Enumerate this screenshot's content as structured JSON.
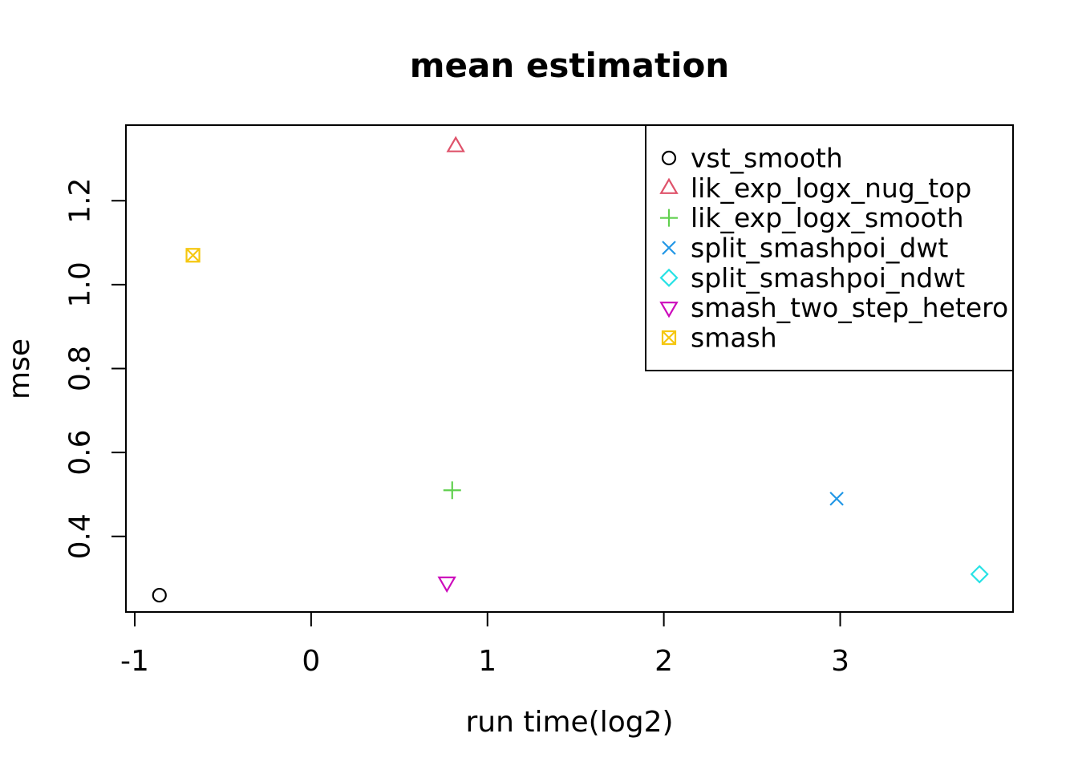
{
  "chart_data": {
    "type": "scatter",
    "title": "mean estimation",
    "xlabel": "run time(log2)",
    "ylabel": "mse",
    "xlim": [
      -1.05,
      3.98
    ],
    "ylim": [
      0.22,
      1.38
    ],
    "xticks": [
      {
        "value": -1,
        "label": "-1"
      },
      {
        "value": 0,
        "label": "0"
      },
      {
        "value": 1,
        "label": "1"
      },
      {
        "value": 2,
        "label": "2"
      },
      {
        "value": 3,
        "label": "3"
      }
    ],
    "yticks": [
      {
        "value": 0.4,
        "label": "0.4"
      },
      {
        "value": 0.6,
        "label": "0.6"
      },
      {
        "value": 0.8,
        "label": "0.8"
      },
      {
        "value": 1.0,
        "label": "1.0"
      },
      {
        "value": 1.2,
        "label": "1.2"
      }
    ],
    "grid": false,
    "legend": {
      "position": "topright",
      "border": true
    },
    "axis_color": "#000000",
    "background": "#FFFFFF",
    "series": [
      {
        "name": "vst_smooth",
        "marker": "circle",
        "color": "#000000",
        "points": [
          {
            "x": -0.86,
            "y": 0.26
          }
        ]
      },
      {
        "name": "lik_exp_logx_nug_top",
        "marker": "triangle-up",
        "color": "#DF536B",
        "points": [
          {
            "x": 0.82,
            "y": 1.33
          }
        ]
      },
      {
        "name": "lik_exp_logx_smooth",
        "marker": "plus",
        "color": "#61D04F",
        "points": [
          {
            "x": 0.8,
            "y": 0.51
          }
        ]
      },
      {
        "name": "split_smashpoi_dwt",
        "marker": "x",
        "color": "#2297E6",
        "points": [
          {
            "x": 2.98,
            "y": 0.49
          }
        ]
      },
      {
        "name": "split_smashpoi_ndwt",
        "marker": "diamond",
        "color": "#28E2E5",
        "points": [
          {
            "x": 3.79,
            "y": 0.31
          }
        ]
      },
      {
        "name": "smash_two_step_hetero",
        "marker": "triangle-down",
        "color": "#CD0BBC",
        "points": [
          {
            "x": 0.77,
            "y": 0.29
          }
        ]
      },
      {
        "name": "smash",
        "marker": "square-x",
        "color": "#F5C710",
        "points": [
          {
            "x": -0.67,
            "y": 1.07
          }
        ]
      }
    ]
  }
}
